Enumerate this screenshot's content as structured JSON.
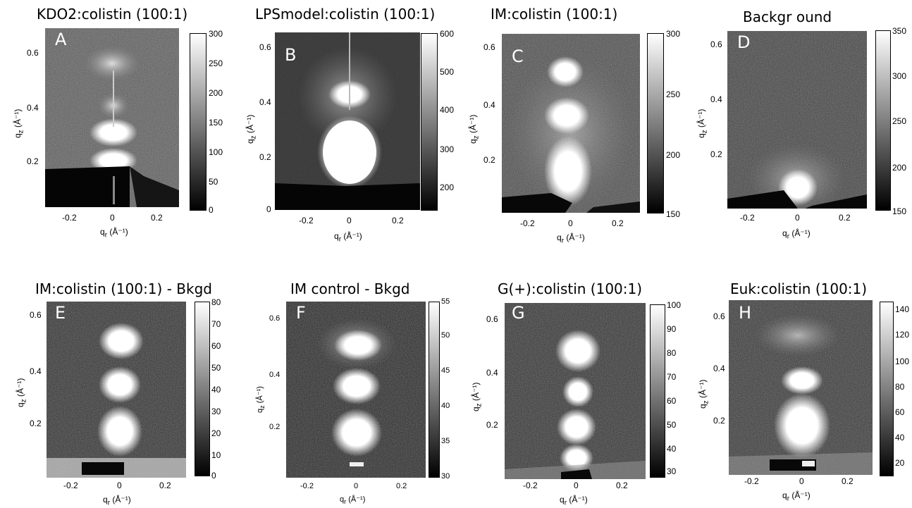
{
  "axis_labels": {
    "qz": "q",
    "qz_sub": "z",
    "qr": "q",
    "qr_sub": "r",
    "unit": "(Å⁻¹)"
  },
  "panels": [
    {
      "id": "A",
      "title": "KDO2:colistin (100:1)",
      "letter": "A",
      "cbar_ticks": [
        "300",
        "250",
        "200",
        "150",
        "100",
        "50",
        "0"
      ],
      "y_ticks": [
        "0.6",
        "0.4",
        "0.2"
      ],
      "x_ticks": [
        "-0.2",
        "0",
        "0.2"
      ]
    },
    {
      "id": "B",
      "title": "LPSmodel:colistin (100:1)",
      "letter": "B",
      "cbar_ticks": [
        "600",
        "500",
        "400",
        "300",
        "200"
      ],
      "y_ticks": [
        "0.6",
        "0.4",
        "0.2",
        "0"
      ],
      "x_ticks": [
        "-0.2",
        "0",
        "0.2"
      ]
    },
    {
      "id": "C",
      "title": "IM:colistin (100:1)",
      "letter": "C",
      "cbar_ticks": [
        "300",
        "250",
        "200",
        "150"
      ],
      "y_ticks": [
        "0.6",
        "0.4",
        "0.2"
      ],
      "x_ticks": [
        "-0.2",
        "0",
        "0.2"
      ]
    },
    {
      "id": "D",
      "title": "Backgr ound",
      "letter": "D",
      "cbar_ticks": [
        "350",
        "300",
        "250",
        "200",
        "150"
      ],
      "y_ticks": [
        "0.6",
        "0.4",
        "0.2"
      ],
      "x_ticks": [
        "-0.2",
        "0",
        "0.2"
      ]
    },
    {
      "id": "E",
      "title": "IM:colistin (100:1) - Bkgd",
      "letter": "E",
      "cbar_ticks": [
        "80",
        "70",
        "60",
        "50",
        "40",
        "30",
        "20",
        "10",
        "0"
      ],
      "y_ticks": [
        "0.6",
        "0.4",
        "0.2"
      ],
      "x_ticks": [
        "-0.2",
        "0",
        "0.2"
      ]
    },
    {
      "id": "F",
      "title": "IM control - Bkgd",
      "letter": "F",
      "cbar_ticks": [
        "55",
        "50",
        "45",
        "40",
        "35",
        "30"
      ],
      "y_ticks": [
        "0.6",
        "0.4",
        "0.2"
      ],
      "x_ticks": [
        "-0.2",
        "0",
        "0.2"
      ]
    },
    {
      "id": "G",
      "title": "G(+):colistin (100:1)",
      "letter": "G",
      "cbar_ticks": [
        "100",
        "90",
        "80",
        "70",
        "60",
        "50",
        "40",
        "30"
      ],
      "y_ticks": [
        "0.6",
        "0.4",
        "0.2"
      ],
      "x_ticks": [
        "-0.2",
        "0",
        "0.2"
      ]
    },
    {
      "id": "H",
      "title": "Euk:colistin (100:1)",
      "letter": "H",
      "cbar_ticks": [
        "140",
        "120",
        "100",
        "80",
        "60",
        "40",
        "20"
      ],
      "y_ticks": [
        "0.6",
        "0.4",
        "0.2"
      ],
      "x_ticks": [
        "-0.2",
        "0",
        "0.2"
      ]
    }
  ]
}
